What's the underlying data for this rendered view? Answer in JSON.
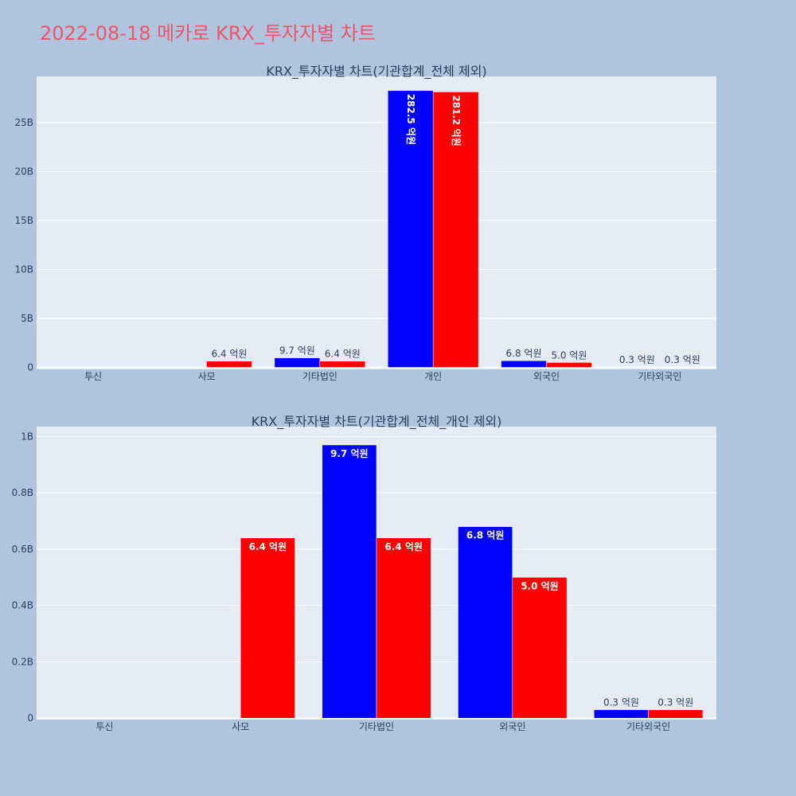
{
  "page_title": "2022-08-18 메카로 KRX_투자자별 차트",
  "colors": {
    "background": "#b0c4de",
    "plot_background": "#e5ecf6",
    "title": "#e8566e",
    "series_a": "#0000ff",
    "series_b": "#ff0000"
  },
  "chart_data": [
    {
      "type": "bar",
      "title": "KRX_투자자별 차트(기관합계_전체 제외)",
      "categories": [
        "투신",
        "사모",
        "기타법인",
        "개인",
        "외국인",
        "기타외국인"
      ],
      "series": [
        {
          "color": "#0000ff",
          "values": [
            0,
            0,
            970000000,
            28250000000,
            680000000,
            30000000
          ],
          "labels": [
            "",
            "",
            "9.7 억원",
            "282.5 억원",
            "6.8 억원",
            "0.3 억원"
          ]
        },
        {
          "color": "#ff0000",
          "values": [
            0,
            640000000,
            640000000,
            28120000000,
            500000000,
            30000000
          ],
          "labels": [
            "",
            "6.4 억원",
            "6.4 억원",
            "281.2 억원",
            "5.0 억원",
            "0.3 억원"
          ]
        }
      ],
      "yticks": [
        0,
        5000000000,
        10000000000,
        15000000000,
        20000000000,
        25000000000
      ],
      "ytick_labels": [
        "0",
        "5B",
        "10B",
        "15B",
        "20B",
        "25B"
      ],
      "ylim": [
        -200000000,
        29700000000
      ],
      "grid": true,
      "legend": "none"
    },
    {
      "type": "bar",
      "title": "KRX_투자자별 차트(기관합계_전체_개인 제외)",
      "categories": [
        "투신",
        "사모",
        "기타법인",
        "외국인",
        "기타외국인"
      ],
      "series": [
        {
          "color": "#0000ff",
          "values": [
            0,
            0,
            970000000,
            680000000,
            30000000
          ],
          "labels": [
            "",
            "",
            "9.7 억원",
            "6.8 억원",
            "0.3 억원"
          ]
        },
        {
          "color": "#ff0000",
          "values": [
            0,
            640000000,
            640000000,
            500000000,
            30000000
          ],
          "labels": [
            "",
            "6.4 억원",
            "6.4 억원",
            "5.0 억원",
            "0.3 억원"
          ]
        }
      ],
      "yticks": [
        0,
        200000000,
        400000000,
        600000000,
        800000000,
        1000000000
      ],
      "ytick_labels": [
        "0",
        "0.2B",
        "0.4B",
        "0.6B",
        "0.8B",
        "1B"
      ],
      "ylim": [
        -5000000,
        1035000000
      ],
      "grid": true,
      "legend": "none"
    }
  ]
}
